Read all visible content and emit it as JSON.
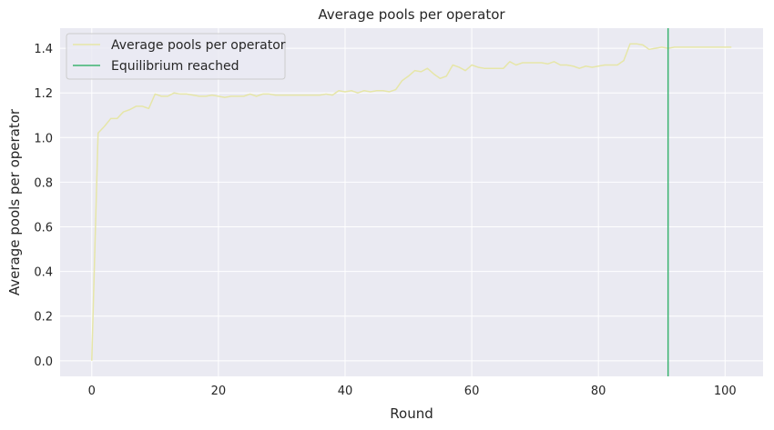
{
  "chart_data": {
    "type": "line",
    "title": "Average pools per operator",
    "xlabel": "Round",
    "ylabel": "Average pools per operator",
    "xlim": [
      -5,
      106
    ],
    "ylim": [
      -0.07,
      1.49
    ],
    "xticks": [
      0,
      20,
      40,
      60,
      80,
      100
    ],
    "yticks": [
      0.0,
      0.2,
      0.4,
      0.6,
      0.8,
      1.0,
      1.2,
      1.4
    ],
    "xtick_labels": [
      "0",
      "20",
      "40",
      "60",
      "80",
      "100"
    ],
    "ytick_labels": [
      "0.0",
      "0.2",
      "0.4",
      "0.6",
      "0.8",
      "1.0",
      "1.2",
      "1.4"
    ],
    "grid": true,
    "legend_position": "top-left",
    "series": [
      {
        "name": "Average pools per operator",
        "color": "#e6e6a8",
        "x": [
          0,
          1,
          2,
          3,
          4,
          5,
          6,
          7,
          8,
          9,
          10,
          11,
          12,
          13,
          14,
          15,
          16,
          17,
          18,
          19,
          20,
          21,
          22,
          23,
          24,
          25,
          26,
          27,
          28,
          29,
          30,
          31,
          32,
          33,
          34,
          35,
          36,
          37,
          38,
          39,
          40,
          41,
          42,
          43,
          44,
          45,
          46,
          47,
          48,
          49,
          50,
          51,
          52,
          53,
          54,
          55,
          56,
          57,
          58,
          59,
          60,
          61,
          62,
          63,
          64,
          65,
          66,
          67,
          68,
          69,
          70,
          71,
          72,
          73,
          74,
          75,
          76,
          77,
          78,
          79,
          80,
          81,
          82,
          83,
          84,
          85,
          86,
          87,
          88,
          89,
          90,
          91,
          92,
          93,
          94,
          95,
          96,
          97,
          98,
          99,
          100,
          101
        ],
        "y": [
          0.0,
          1.02,
          1.05,
          1.085,
          1.085,
          1.115,
          1.125,
          1.14,
          1.14,
          1.13,
          1.195,
          1.185,
          1.185,
          1.2,
          1.195,
          1.195,
          1.19,
          1.185,
          1.185,
          1.19,
          1.185,
          1.18,
          1.185,
          1.185,
          1.185,
          1.195,
          1.185,
          1.195,
          1.195,
          1.19,
          1.19,
          1.19,
          1.19,
          1.19,
          1.19,
          1.19,
          1.19,
          1.195,
          1.19,
          1.21,
          1.205,
          1.21,
          1.2,
          1.21,
          1.205,
          1.21,
          1.21,
          1.205,
          1.215,
          1.255,
          1.275,
          1.3,
          1.295,
          1.31,
          1.285,
          1.265,
          1.275,
          1.325,
          1.315,
          1.3,
          1.325,
          1.315,
          1.31,
          1.31,
          1.31,
          1.31,
          1.34,
          1.325,
          1.335,
          1.335,
          1.335,
          1.335,
          1.33,
          1.34,
          1.325,
          1.325,
          1.32,
          1.31,
          1.32,
          1.315,
          1.32,
          1.325,
          1.325,
          1.325,
          1.345,
          1.42,
          1.42,
          1.415,
          1.395,
          1.4,
          1.405,
          1.4,
          1.405,
          1.405,
          1.405,
          1.405,
          1.405,
          1.405,
          1.405,
          1.405,
          1.405,
          1.405
        ]
      },
      {
        "name": "Equilibrium reached",
        "color": "#3cb371",
        "type": "vline",
        "x": 91
      }
    ]
  }
}
